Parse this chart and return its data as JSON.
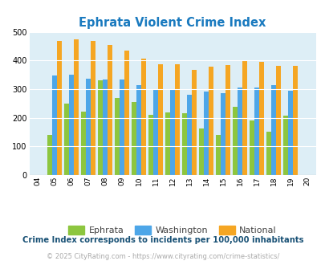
{
  "title": "Ephrata Violent Crime Index",
  "title_color": "#1a7abf",
  "years": [
    2005,
    2006,
    2007,
    2008,
    2009,
    2010,
    2011,
    2012,
    2013,
    2014,
    2015,
    2016,
    2017,
    2018,
    2019
  ],
  "ephrata": [
    140,
    250,
    220,
    330,
    270,
    255,
    210,
    218,
    215,
    163,
    140,
    238,
    191,
    150,
    207
  ],
  "washington": [
    347,
    350,
    337,
    332,
    334,
    315,
    300,
    300,
    280,
    290,
    286,
    305,
    306,
    313,
    295
  ],
  "national": [
    469,
    474,
    467,
    455,
    433,
    405,
    388,
    387,
    367,
    377,
    384,
    398,
    395,
    380,
    380
  ],
  "ephrata_color": "#8dc63f",
  "washington_color": "#4da6e8",
  "national_color": "#f5a623",
  "bg_color": "#ddeef6",
  "ylim": [
    0,
    500
  ],
  "yticks": [
    0,
    100,
    200,
    300,
    400,
    500
  ],
  "legend_labels": [
    "Ephrata",
    "Washington",
    "National"
  ],
  "footnote1": "Crime Index corresponds to incidents per 100,000 inhabitants",
  "footnote2": "© 2025 CityRating.com - https://www.cityrating.com/crime-statistics/",
  "footnote1_color": "#1a5276",
  "footnote2_color": "#aaaaaa"
}
